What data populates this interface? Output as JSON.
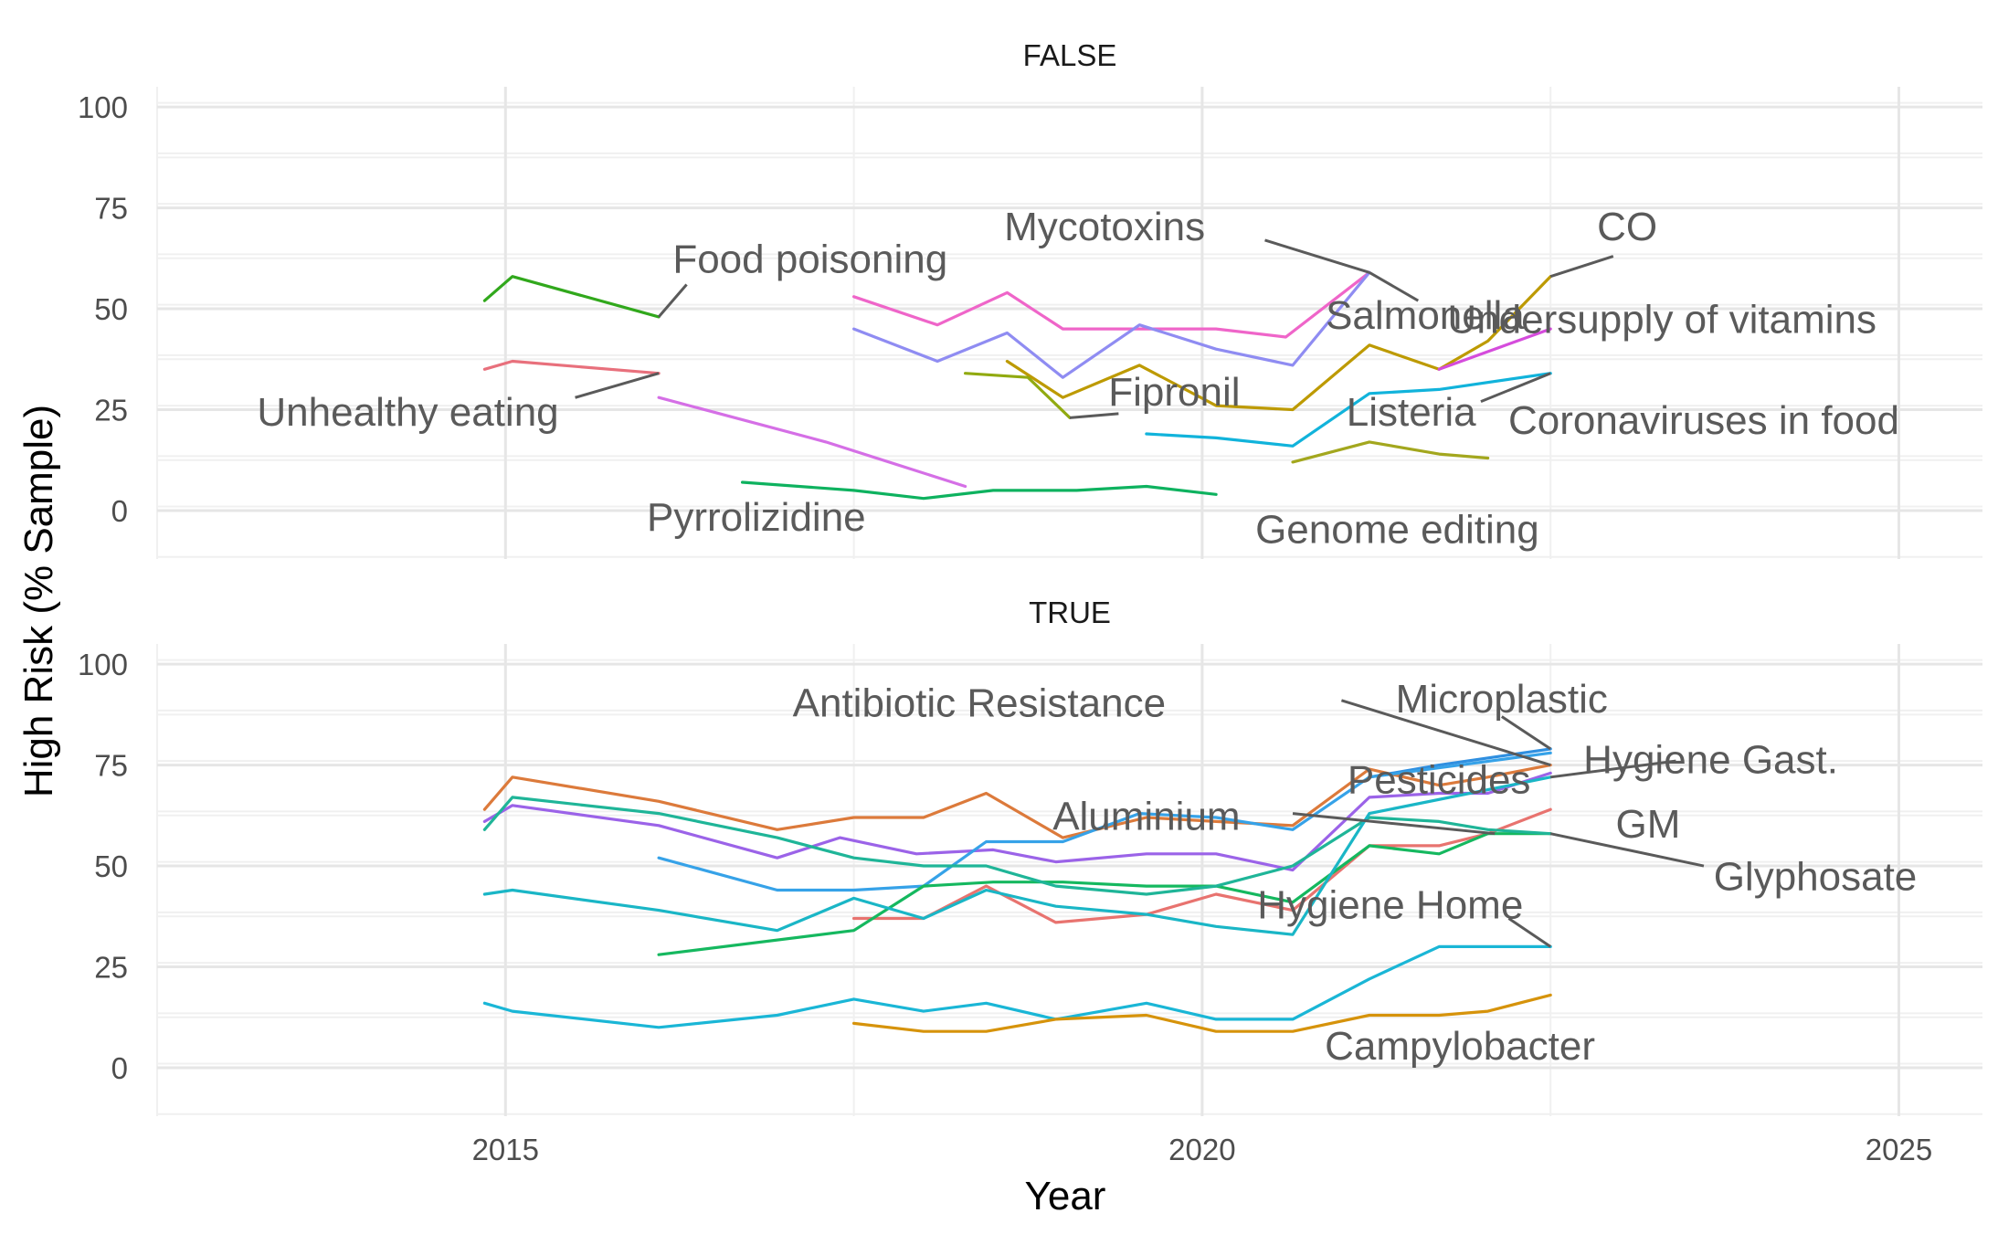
{
  "chart_data": {
    "type": "line",
    "xlabel": "Year",
    "ylabel": "High Risk (% Sample)",
    "xlim": [
      2012.5,
      2025.6
    ],
    "ylim": [
      -12,
      105
    ],
    "xticks": [
      2015,
      2020,
      2025
    ],
    "xtick_labels": [
      "2015",
      "2020",
      "2025"
    ],
    "yticks": [
      0,
      25,
      50,
      75,
      100
    ],
    "ytick_labels": [
      "0",
      "25",
      "50",
      "75",
      "100"
    ],
    "grid": true,
    "legend": "none",
    "facets": [
      {
        "title": "FALSE",
        "series": [
          {
            "name": "Food poisoning",
            "color": "#31a81c",
            "x": [
              2014.85,
              2015.05,
              2016.1
            ],
            "y": [
              52,
              58,
              48
            ],
            "label_x": 2016.2,
            "label_y": 59,
            "anchor": "start",
            "leader": [
              [
                2016.1,
                48
              ],
              [
                2016.3,
                56
              ]
            ]
          },
          {
            "name": "Unhealthy eating",
            "color": "#e8707c",
            "x": [
              2014.85,
              2015.05,
              2016.1
            ],
            "y": [
              35,
              37,
              34
            ],
            "label_x": 2014.3,
            "label_y": 21,
            "anchor": "middle",
            "leader": [
              [
                2016.1,
                34
              ],
              [
                2015.5,
                28
              ]
            ]
          },
          {
            "name": "Pyrrolizidine",
            "color": "#d56fe6",
            "x": [
              2016.1,
              2017.3,
              2018.3
            ],
            "y": [
              28,
              17,
              6
            ],
            "label_x": 2016.8,
            "label_y": -5,
            "anchor": "middle",
            "leader": []
          },
          {
            "name": "Mycotoxins",
            "color": "#ef65c9",
            "x": [
              2017.5,
              2018.1,
              2018.6,
              2019.0,
              2019.6,
              2020.1,
              2020.6,
              2021.2
            ],
            "y": [
              53,
              46,
              54,
              45,
              45,
              45,
              43,
              59
            ],
            "label_x": 2019.3,
            "label_y": 67,
            "anchor": "middle",
            "leader": [
              [
                2020.45,
                67
              ],
              [
                2021.2,
                59
              ]
            ]
          },
          {
            "name": "Salmonella",
            "color": "#8f8cf2",
            "x": [
              2017.5,
              2018.1,
              2018.6,
              2019.0,
              2019.55,
              2020.1,
              2020.65,
              2021.2
            ],
            "y": [
              45,
              37,
              44,
              33,
              46,
              40,
              36,
              59
            ],
            "label_x": 2021.6,
            "label_y": 45,
            "anchor": "middle",
            "leader": [
              [
                2021.2,
                59
              ],
              [
                2021.55,
                52
              ]
            ]
          },
          {
            "name": "CO",
            "color": "#bd9a00",
            "x": [
              2018.6,
              2019.0,
              2019.55,
              2020.1,
              2020.65,
              2021.2,
              2021.7,
              2022.05,
              2022.5
            ],
            "y": [
              37,
              28,
              36,
              26,
              25,
              41,
              35,
              42,
              58
            ],
            "label_x": 2023.05,
            "label_y": 67,
            "anchor": "middle",
            "leader": [
              [
                2022.5,
                58
              ],
              [
                2022.95,
                63
              ]
            ]
          },
          {
            "name": "Fipronil",
            "color": "#91aa10",
            "x": [
              2018.3,
              2018.75,
              2019.05
            ],
            "y": [
              34,
              33,
              23
            ],
            "label_x": 2019.8,
            "label_y": 26,
            "anchor": "middle",
            "leader": [
              [
                2019.05,
                23
              ],
              [
                2019.4,
                24
              ]
            ]
          },
          {
            "name": "Undersupply of vitamins",
            "color": "#d54cdc",
            "x": [
              2021.7,
              2022.5
            ],
            "y": [
              35,
              45
            ],
            "label_x": 2023.3,
            "label_y": 44,
            "anchor": "middle",
            "leader": []
          },
          {
            "name": "Listeria",
            "color": "#11b3db",
            "x": [
              2019.6,
              2020.1,
              2020.65,
              2021.2,
              2021.7,
              2022.5
            ],
            "y": [
              19,
              18,
              16,
              29,
              30,
              34
            ],
            "label_x": 2021.5,
            "label_y": 21,
            "anchor": "middle",
            "leader": [
              [
                2022.5,
                34
              ],
              [
                2022.0,
                27
              ]
            ]
          },
          {
            "name": "Coronaviruses in food",
            "color": "#0b9fd2",
            "x": [
              2022.5
            ],
            "y": [
              34
            ],
            "label_x": 2023.6,
            "label_y": 19,
            "anchor": "middle",
            "leader": []
          },
          {
            "name": "Genome editing",
            "color": "#a3a71e",
            "x": [
              2020.65,
              2021.2,
              2021.7,
              2022.05
            ],
            "y": [
              12,
              17,
              14,
              13
            ],
            "label_x": 2021.4,
            "label_y": -8,
            "anchor": "middle",
            "leader": []
          },
          {
            "name": "",
            "color": "#0eb25f",
            "x": [
              2016.7,
              2017.5,
              2018.0,
              2018.5,
              2019.1,
              2019.6,
              2020.1
            ],
            "y": [
              7,
              5,
              3,
              5,
              5,
              6,
              4
            ],
            "label_x": 2016.7,
            "label_y": 7,
            "anchor": "middle",
            "leader": []
          }
        ]
      },
      {
        "title": "TRUE",
        "series": [
          {
            "name": "Antibiotic Resistance",
            "color": "#dc7a3b",
            "x": [
              2014.85,
              2015.05,
              2016.1,
              2016.95,
              2017.5,
              2018.0,
              2018.45,
              2019.0,
              2019.6,
              2020.1,
              2020.65,
              2021.2,
              2021.7,
              2022.05,
              2022.5
            ],
            "y": [
              64,
              72,
              66,
              59,
              62,
              62,
              68,
              57,
              62,
              61,
              60,
              74,
              70,
              72,
              75
            ],
            "label_x": 2018.4,
            "label_y": 87,
            "anchor": "middle",
            "leader": [
              [
                2021.0,
                91
              ],
              [
                2022.5,
                75
              ]
            ]
          },
          {
            "name": "Microplastic",
            "color": "#2f8fe0",
            "x": [
              2021.2,
              2021.7,
              2022.5
            ],
            "y": [
              72,
              75,
              79
            ],
            "label_x": 2022.15,
            "label_y": 88,
            "anchor": "middle",
            "leader": [
              [
                2022.15,
                87
              ],
              [
                2022.5,
                79
              ]
            ]
          },
          {
            "name": "Hygiene Gast.",
            "color": "#9b63e8",
            "x": [
              2014.85,
              2015.05,
              2016.1,
              2016.95,
              2017.4,
              2017.95,
              2018.5,
              2018.95,
              2019.6,
              2020.1,
              2020.65,
              2021.2,
              2021.7,
              2022.05,
              2022.5
            ],
            "y": [
              61,
              65,
              60,
              52,
              57,
              53,
              54,
              51,
              53,
              53,
              49,
              67,
              68,
              68,
              73
            ],
            "label_x": 2023.65,
            "label_y": 73,
            "anchor": "middle",
            "leader": [
              [
                2022.5,
                72
              ],
              [
                2023.4,
                76
              ]
            ]
          },
          {
            "name": "Pesticides",
            "color": "#36a2e8",
            "x": [
              2016.1,
              2016.95,
              2017.5,
              2018.0,
              2018.45,
              2019.0,
              2019.55,
              2020.1,
              2020.65,
              2021.2,
              2022.5
            ],
            "y": [
              52,
              44,
              44,
              45,
              56,
              56,
              63,
              62,
              59,
              72,
              78
            ],
            "label_x": 2021.7,
            "label_y": 68,
            "anchor": "middle",
            "leader": []
          },
          {
            "name": "Aluminium",
            "color": "#e8736f",
            "x": [
              2017.5,
              2018.0,
              2018.45,
              2018.95,
              2019.6,
              2020.1,
              2020.65,
              2021.2,
              2021.7,
              2022.05,
              2022.5
            ],
            "y": [
              37,
              37,
              45,
              36,
              38,
              43,
              39,
              55,
              55,
              58,
              64
            ],
            "label_x": 2019.6,
            "label_y": 59,
            "anchor": "middle",
            "leader": [
              [
                2020.65,
                63
              ],
              [
                2022.1,
                58
              ]
            ]
          },
          {
            "name": "GM",
            "color": "#15b85f",
            "x": [
              2016.1,
              2017.5,
              2018.0,
              2018.5,
              2019.0,
              2019.6,
              2020.1,
              2020.65,
              2021.2,
              2021.7,
              2022.05,
              2022.5
            ],
            "y": [
              28,
              34,
              45,
              46,
              46,
              45,
              45,
              41,
              55,
              53,
              58,
              58
            ],
            "label_x": 2023.2,
            "label_y": 57,
            "anchor": "middle",
            "leader": []
          },
          {
            "name": "Glyphosate",
            "color": "#1fb598",
            "x": [
              2014.85,
              2015.05,
              2016.1,
              2016.95,
              2017.5,
              2018.0,
              2018.45,
              2018.95,
              2019.6,
              2020.1,
              2020.65,
              2021.2,
              2021.7,
              2022.05,
              2022.5
            ],
            "y": [
              59,
              67,
              63,
              57,
              52,
              50,
              50,
              45,
              43,
              45,
              50,
              62,
              61,
              59,
              58
            ],
            "label_x": 2024.4,
            "label_y": 44,
            "anchor": "middle",
            "leader": [
              [
                2022.5,
                58
              ],
              [
                2023.6,
                50
              ]
            ]
          },
          {
            "name": "Hygiene Home",
            "color": "#1ab6c6",
            "x": [
              2014.85,
              2015.05,
              2016.1,
              2016.95,
              2017.5,
              2018.0,
              2018.45,
              2018.95,
              2019.6,
              2020.1,
              2020.65,
              2021.2,
              2022.5
            ],
            "y": [
              43,
              44,
              39,
              34,
              42,
              37,
              44,
              40,
              38,
              35,
              33,
              63,
              72
            ],
            "label_x": 2021.35,
            "label_y": 37,
            "anchor": "middle",
            "leader": [
              [
                2022.2,
                37
              ],
              [
                2022.5,
                30
              ]
            ]
          },
          {
            "name": "",
            "color": "#1ab6d6",
            "x": [
              2014.85,
              2015.05,
              2016.1,
              2016.95,
              2017.5,
              2018.0,
              2018.45,
              2018.95,
              2019.6,
              2020.1,
              2020.65,
              2021.2,
              2021.7,
              2022.05,
              2022.5
            ],
            "y": [
              16,
              14,
              10,
              13,
              17,
              14,
              16,
              12,
              16,
              12,
              12,
              22,
              30,
              30,
              30
            ],
            "label_x": 2014.85,
            "label_y": 16,
            "anchor": "middle",
            "leader": []
          },
          {
            "name": "Campylobacter",
            "color": "#d6930b",
            "x": [
              2017.5,
              2018.0,
              2018.45,
              2018.95,
              2019.6,
              2020.1,
              2020.65,
              2021.2,
              2021.7,
              2022.05,
              2022.5
            ],
            "y": [
              11,
              9,
              9,
              12,
              13,
              9,
              9,
              13,
              13,
              14,
              18
            ],
            "label_x": 2021.85,
            "label_y": 2,
            "anchor": "middle",
            "leader": []
          }
        ]
      }
    ]
  }
}
